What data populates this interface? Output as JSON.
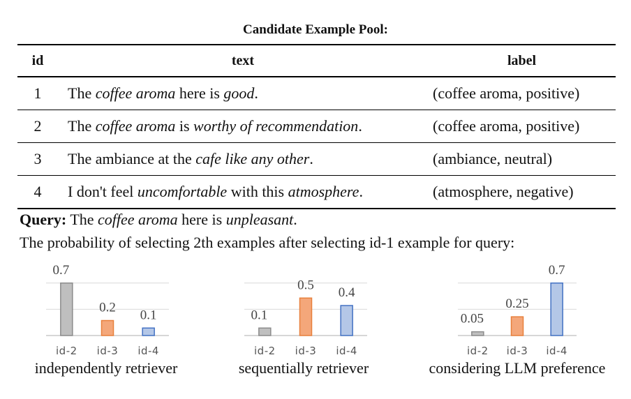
{
  "pool": {
    "title": "Candidate Example Pool:",
    "headers": {
      "id": "id",
      "text": "text",
      "label": "label"
    },
    "rows": [
      {
        "id": "1",
        "text": [
          [
            "The ",
            false
          ],
          [
            "coffee aroma",
            true
          ],
          [
            " here is ",
            false
          ],
          [
            "good",
            true
          ],
          [
            ".",
            false
          ]
        ],
        "label": "(coffee aroma, positive)"
      },
      {
        "id": "2",
        "text": [
          [
            "The ",
            false
          ],
          [
            "coffee aroma",
            true
          ],
          [
            " is ",
            false
          ],
          [
            "worthy of recommendation",
            true
          ],
          [
            ".",
            false
          ]
        ],
        "label": "(coffee aroma, positive)"
      },
      {
        "id": "3",
        "text": [
          [
            "The ambiance at the ",
            false
          ],
          [
            "cafe like any other",
            true
          ],
          [
            ".",
            false
          ]
        ],
        "label": "(ambiance, neutral)"
      },
      {
        "id": "4",
        "text": [
          [
            "I don't feel ",
            false
          ],
          [
            "uncomfortable",
            true
          ],
          [
            " with this ",
            false
          ],
          [
            "atmosphere",
            true
          ],
          [
            ".",
            false
          ]
        ],
        "label": "(atmosphere, negative)"
      }
    ]
  },
  "query": {
    "label": "Query:",
    "text": [
      [
        "The ",
        false
      ],
      [
        "coffee aroma",
        true
      ],
      [
        " here is ",
        false
      ],
      [
        "unpleasant",
        true
      ],
      [
        ".",
        false
      ]
    ]
  },
  "probability_line": "The probability of selecting 2th examples after selecting id-1 example for query:",
  "colors": {
    "gray": "#bfbfbf",
    "orange": "#f4a77a",
    "blue": "#b4c7e7",
    "grayEdge": "#8c8c8c",
    "orangeEdge": "#e8803c",
    "blueEdge": "#4472c4"
  },
  "chart_data": [
    {
      "type": "bar",
      "title": "independently retriever",
      "categories": [
        "id-2",
        "id-3",
        "id-4"
      ],
      "values": [
        0.7,
        0.2,
        0.1
      ],
      "value_labels": [
        "0.7",
        "0.2",
        "0.1"
      ],
      "ylim": [
        0,
        0.8
      ]
    },
    {
      "type": "bar",
      "title": "sequentially retriever",
      "categories": [
        "id-2",
        "id-3",
        "id-4"
      ],
      "values": [
        0.1,
        0.5,
        0.4
      ],
      "value_labels": [
        "0.1",
        "0.5",
        "0.4"
      ],
      "ylim": [
        0,
        0.8
      ]
    },
    {
      "type": "bar",
      "title": "considering LLM preference",
      "categories": [
        "id-2",
        "id-3",
        "id-4"
      ],
      "values": [
        0.05,
        0.25,
        0.7
      ],
      "value_labels": [
        "0.05",
        "0.25",
        "0.7"
      ],
      "ylim": [
        0,
        0.8
      ]
    }
  ]
}
